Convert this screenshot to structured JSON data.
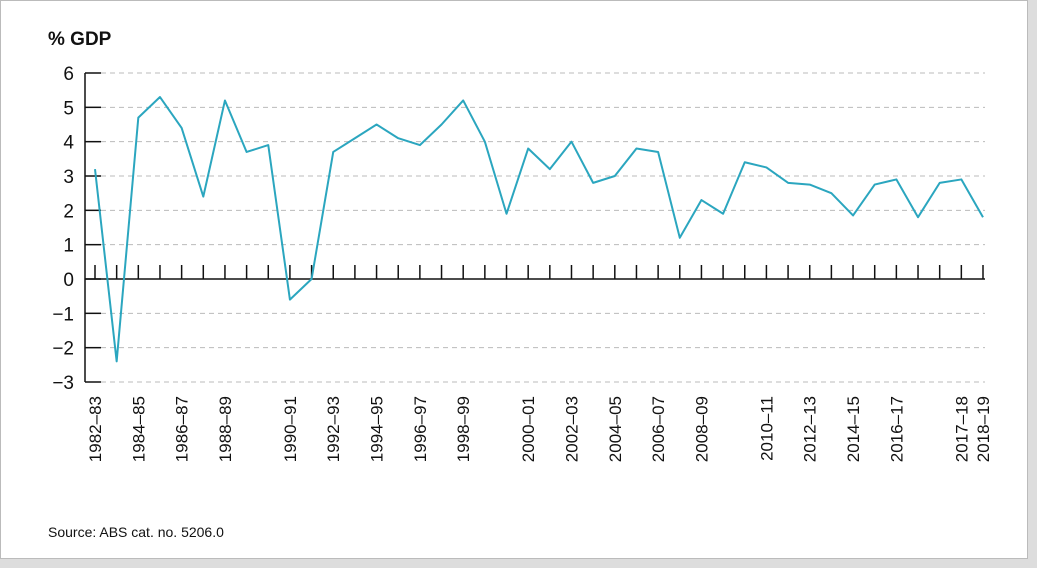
{
  "chart_data": {
    "type": "line",
    "y_label": "% GDP",
    "source": "Source: ABS cat. no. 5206.0",
    "categories": [
      "1982–83",
      null,
      "1984–85",
      null,
      "1986–87",
      null,
      "1988–89",
      null,
      null,
      "1990–91",
      null,
      "1992–93",
      null,
      "1994–95",
      null,
      "1996–97",
      null,
      "1998–99",
      null,
      null,
      "2000–01",
      null,
      "2002–03",
      null,
      "2004–05",
      null,
      "2006–07",
      null,
      "2008–09",
      null,
      null,
      "2010–11",
      null,
      "2012–13",
      null,
      "2014–15",
      null,
      "2016–17",
      null,
      null,
      "2017–18",
      "2018–19"
    ],
    "series": [
      {
        "name": "% GDP",
        "color": "#2ba6bf",
        "values": [
          3.2,
          -2.4,
          4.7,
          5.3,
          4.4,
          2.4,
          5.2,
          3.7,
          3.9,
          -0.6,
          0.0,
          3.7,
          4.1,
          4.5,
          4.1,
          3.9,
          4.5,
          5.2,
          4.0,
          1.9,
          3.8,
          3.2,
          4.0,
          2.8,
          3.0,
          3.8,
          3.7,
          1.2,
          2.3,
          1.9,
          3.4,
          3.25,
          2.8,
          2.75,
          2.5,
          1.85,
          2.75,
          2.9,
          1.8,
          2.8,
          2.9,
          1.8
        ]
      }
    ],
    "ylim": [
      -3,
      6
    ],
    "yticks": [
      {
        "value": -3,
        "label": "−3"
      },
      {
        "value": -2,
        "label": "−2"
      },
      {
        "value": -1,
        "label": "−1"
      },
      0,
      1,
      2,
      3,
      4,
      5,
      6
    ],
    "grid": true
  }
}
